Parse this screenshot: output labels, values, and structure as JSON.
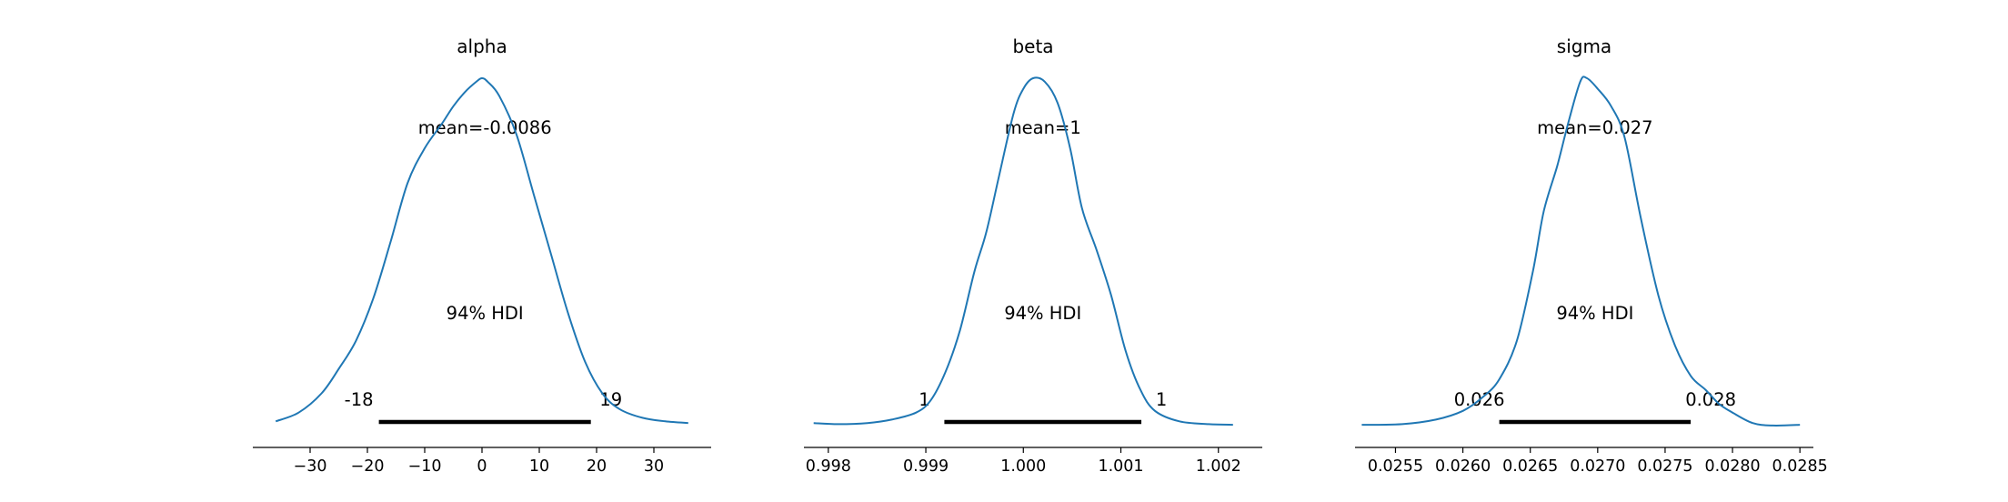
{
  "chart_data": [
    {
      "type": "line",
      "title": "alpha",
      "mean_label": "mean=-0.0086",
      "hdi_label": "94% HDI",
      "hdi": [
        -18,
        19
      ],
      "hdi_labels": [
        "-18",
        "19"
      ],
      "xlim": [
        -40,
        40
      ],
      "xticks": [
        -30,
        -20,
        -10,
        0,
        10,
        20,
        30
      ],
      "xtick_labels": [
        "−30",
        "−20",
        "−10",
        "0",
        "10",
        "20",
        "30"
      ],
      "color": "#1f77b4",
      "density": {
        "x": [
          -36,
          -32,
          -28,
          -25,
          -22,
          -19,
          -16,
          -13,
          -10,
          -7,
          -5,
          -3,
          -1,
          0,
          1,
          3,
          6,
          9,
          12,
          15,
          18,
          21,
          24,
          28,
          32,
          36
        ],
        "y": [
          0.02,
          0.045,
          0.1,
          0.17,
          0.25,
          0.37,
          0.53,
          0.7,
          0.8,
          0.87,
          0.92,
          0.96,
          0.99,
          1.0,
          0.99,
          0.95,
          0.84,
          0.67,
          0.5,
          0.33,
          0.19,
          0.1,
          0.055,
          0.03,
          0.02,
          0.015
        ]
      }
    },
    {
      "type": "line",
      "title": "beta",
      "mean_label": "mean=1",
      "hdi_label": "94% HDI",
      "hdi": [
        0.99919,
        1.00121
      ],
      "hdi_labels": [
        "1",
        "1"
      ],
      "xlim": [
        0.99775,
        1.00245
      ],
      "xticks": [
        0.998,
        0.999,
        1.0,
        1.001,
        1.002
      ],
      "xtick_labels": [
        "0.998",
        "0.999",
        "1.000",
        "1.001",
        "1.002"
      ],
      "color": "#1f77b4",
      "density": {
        "x": [
          0.99785,
          0.9981,
          0.9984,
          0.99865,
          0.9989,
          0.99905,
          0.9992,
          0.99935,
          0.9995,
          0.99962,
          0.99975,
          0.9999,
          1.0,
          1.0001,
          1.00022,
          1.00035,
          1.00048,
          1.0006,
          1.00075,
          1.0009,
          1.00105,
          1.0012,
          1.00135,
          1.0016,
          1.0019,
          1.00215
        ],
        "y": [
          0.015,
          0.012,
          0.015,
          0.025,
          0.045,
          0.08,
          0.16,
          0.28,
          0.45,
          0.56,
          0.72,
          0.9,
          0.97,
          1.0,
          0.99,
          0.93,
          0.8,
          0.63,
          0.51,
          0.38,
          0.22,
          0.11,
          0.05,
          0.02,
          0.012,
          0.01
        ]
      }
    },
    {
      "type": "line",
      "title": "sigma",
      "mean_label": "mean=0.027",
      "hdi_label": "94% HDI",
      "hdi": [
        0.02627,
        0.02769
      ],
      "hdi_labels": [
        "0.026",
        "0.028"
      ],
      "xlim": [
        0.0252,
        0.0286
      ],
      "xticks": [
        0.0255,
        0.026,
        0.0265,
        0.027,
        0.0275,
        0.028,
        0.0285
      ],
      "xtick_labels": [
        "0.0255",
        "0.0260",
        "0.0265",
        "0.0270",
        "0.0275",
        "0.0280",
        "0.0285"
      ],
      "color": "#1f77b4",
      "density": {
        "x": [
          0.02525,
          0.02555,
          0.0258,
          0.026,
          0.02615,
          0.02627,
          0.0264,
          0.02652,
          0.0266,
          0.0267,
          0.02678,
          0.02687,
          0.02692,
          0.027,
          0.0271,
          0.0272,
          0.02732,
          0.02745,
          0.02757,
          0.02769,
          0.0278,
          0.0279,
          0.028,
          0.02815,
          0.0283,
          0.0285
        ],
        "y": [
          0.01,
          0.012,
          0.025,
          0.05,
          0.09,
          0.14,
          0.25,
          0.45,
          0.62,
          0.75,
          0.87,
          0.99,
          1.0,
          0.97,
          0.92,
          0.83,
          0.6,
          0.38,
          0.24,
          0.15,
          0.11,
          0.07,
          0.045,
          0.015,
          0.008,
          0.01
        ]
      }
    }
  ]
}
